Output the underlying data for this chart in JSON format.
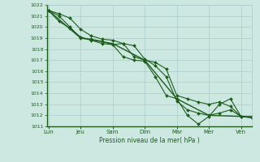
{
  "background_color": "#cce8e0",
  "grid_color": "#aacccc",
  "line_color": "#1e5c1e",
  "marker_color": "#1e5c1e",
  "xlabel": "Pression niveau de la mer( hPa )",
  "ylim": [
    1011,
    1022
  ],
  "yticks": [
    1011,
    1012,
    1013,
    1014,
    1015,
    1016,
    1017,
    1018,
    1019,
    1020,
    1021,
    1022
  ],
  "xtick_labels": [
    "Lun",
    "Jeu",
    "Sam",
    "Dim",
    "Mar",
    "Mer",
    "Ven"
  ],
  "xtick_positions": [
    0,
    1,
    2,
    3,
    4,
    5,
    6
  ],
  "xlim": [
    -0.05,
    6.35
  ],
  "series": [
    {
      "x": [
        0,
        0.33,
        0.67,
        1.0,
        1.33,
        1.67,
        2.0,
        2.33,
        2.67,
        3.0,
        3.33,
        3.67,
        4.0,
        4.33,
        4.67,
        5.0,
        5.33,
        5.67,
        6.0,
        6.33
      ],
      "y": [
        1021.5,
        1021.2,
        1020.8,
        1019.8,
        1019.2,
        1018.9,
        1018.8,
        1018.5,
        1018.3,
        1017.1,
        1016.5,
        1015.5,
        1013.3,
        1012.5,
        1012.2,
        1012.0,
        1012.2,
        1012.5,
        1011.9,
        1011.8
      ],
      "marker": "D",
      "markersize": 2.0,
      "linewidth": 0.8
    },
    {
      "x": [
        0,
        0.33,
        0.67,
        1.0,
        1.33,
        1.67,
        2.0,
        2.33,
        2.67,
        3.0,
        3.33,
        3.67,
        4.0,
        4.33,
        4.67,
        5.0,
        5.33,
        5.67,
        6.0,
        6.33
      ],
      "y": [
        1021.5,
        1021.0,
        1020.0,
        1019.0,
        1018.9,
        1018.7,
        1018.4,
        1018.5,
        1017.3,
        1017.0,
        1016.8,
        1016.2,
        1013.8,
        1013.5,
        1013.2,
        1013.0,
        1013.2,
        1012.8,
        1011.9,
        1011.8
      ],
      "marker": "D",
      "markersize": 2.0,
      "linewidth": 0.8
    },
    {
      "x": [
        0,
        0.33,
        0.67,
        1.0,
        1.33,
        1.67,
        2.0,
        2.33,
        2.67,
        3.0,
        3.33,
        3.67,
        4.0,
        4.33,
        4.67,
        5.0,
        5.33,
        5.67,
        6.0,
        6.33
      ],
      "y": [
        1021.5,
        1020.5,
        1019.9,
        1019.1,
        1018.8,
        1018.5,
        1018.4,
        1017.3,
        1017.0,
        1016.9,
        1015.5,
        1013.8,
        1013.5,
        1012.0,
        1011.2,
        1011.9,
        1013.0,
        1013.5,
        1011.9,
        1011.9
      ],
      "marker": "D",
      "markersize": 2.0,
      "linewidth": 0.8
    },
    {
      "x": [
        0,
        1.0,
        2.0,
        3.0,
        4.0,
        5.0,
        6.0,
        6.33
      ],
      "y": [
        1021.5,
        1019.0,
        1018.5,
        1017.0,
        1013.5,
        1012.0,
        1011.9,
        1011.8
      ],
      "marker": null,
      "markersize": 0,
      "linewidth": 1.0
    }
  ]
}
